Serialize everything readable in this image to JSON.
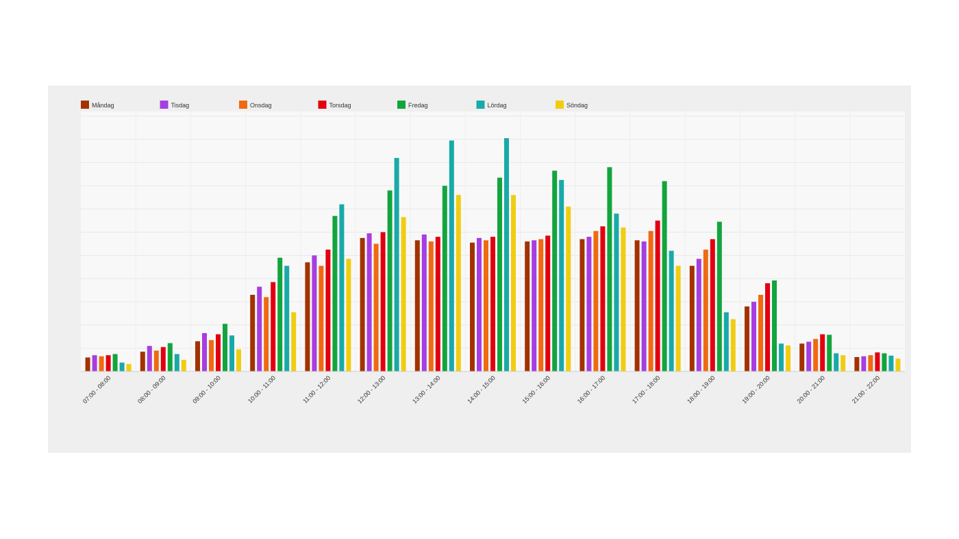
{
  "chart_data": {
    "type": "bar",
    "title": "",
    "xlabel": "",
    "ylabel": "",
    "ylim": [
      0,
      1120
    ],
    "grid": true,
    "legend_position": "top-left",
    "categories": [
      "07:00 - 08:00",
      "08:00 - 09:00",
      "09:00 - 10:00",
      "10:00 - 11:00",
      "11:00 - 12:00",
      "12:00 - 13:00",
      "13:00 - 14:00",
      "14:00 - 15:00",
      "15:00 - 16:00",
      "16:00 - 17:00",
      "17:00 - 18:00",
      "18:00 - 19:00",
      "19:00 - 20:00",
      "20:00 - 21:00",
      "21:00 - 22:00"
    ],
    "series": [
      {
        "name": "Måndag",
        "color": "#a33200",
        "values": [
          60,
          85,
          130,
          330,
          470,
          575,
          565,
          555,
          560,
          570,
          565,
          455,
          280,
          120,
          62
        ]
      },
      {
        "name": "Tisdag",
        "color": "#a63ee0",
        "values": [
          70,
          110,
          165,
          365,
          500,
          595,
          590,
          575,
          565,
          580,
          560,
          485,
          300,
          128,
          65
        ]
      },
      {
        "name": "Onsdag",
        "color": "#ef6a12",
        "values": [
          65,
          90,
          135,
          320,
          455,
          550,
          560,
          565,
          570,
          605,
          605,
          525,
          330,
          140,
          70
        ]
      },
      {
        "name": "Torsdag",
        "color": "#e20010",
        "values": [
          70,
          105,
          160,
          385,
          525,
          600,
          580,
          580,
          585,
          625,
          650,
          570,
          380,
          160,
          82
        ]
      },
      {
        "name": "Fredag",
        "color": "#12a53e",
        "values": [
          75,
          122,
          205,
          490,
          670,
          780,
          800,
          835,
          865,
          880,
          820,
          645,
          392,
          158,
          78
        ]
      },
      {
        "name": "Lördag",
        "color": "#18aaa8",
        "values": [
          38,
          75,
          155,
          455,
          720,
          920,
          995,
          1005,
          825,
          680,
          520,
          255,
          120,
          78,
          68
        ]
      },
      {
        "name": "Söndag",
        "color": "#f0cd10",
        "values": [
          32,
          50,
          95,
          255,
          485,
          665,
          760,
          760,
          710,
          620,
          455,
          225,
          112,
          70,
          55
        ]
      }
    ]
  }
}
